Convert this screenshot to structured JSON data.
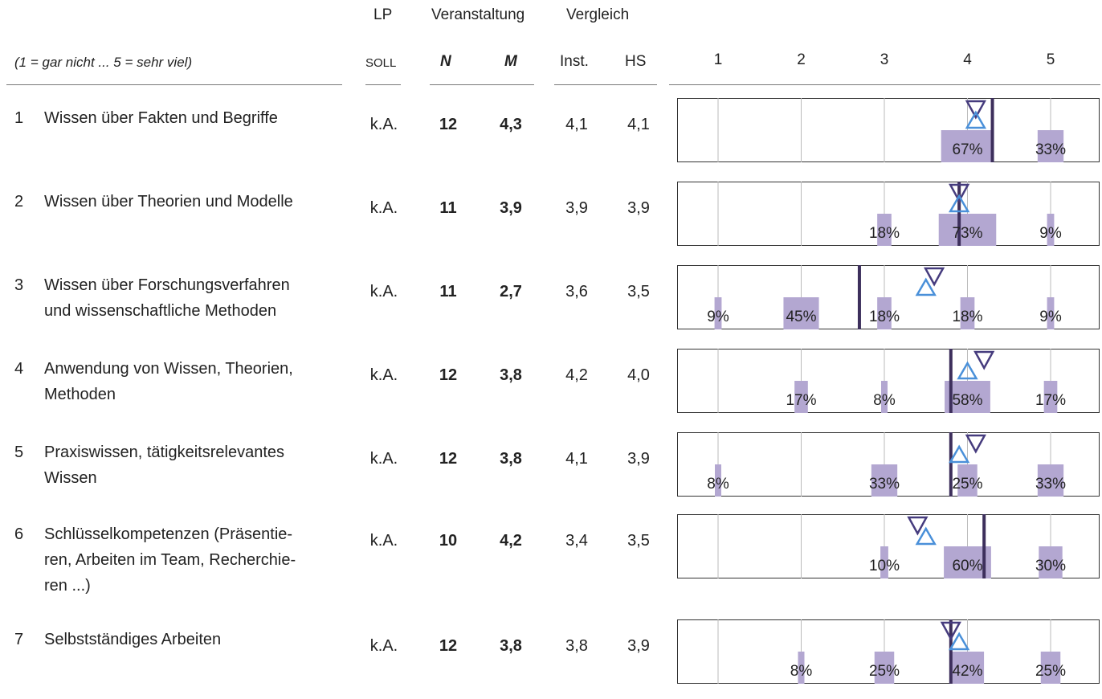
{
  "header": {
    "lp": "LP",
    "veranstaltung": "Veranstaltung",
    "vergleich": "Vergleich",
    "legend": "(1 = gar nicht ... 5 = sehr viel)",
    "soll": "SOLL",
    "n": "N",
    "m": "M",
    "inst": "Inst.",
    "hs": "HS",
    "scale": [
      "1",
      "2",
      "3",
      "4",
      "5"
    ]
  },
  "colors": {
    "bar": "#b3a7d1",
    "mean_line": "#3d2f5c",
    "inst_marker": "#463c7e",
    "hs_marker": "#4a90d9",
    "grid": "#bbbbbb"
  },
  "rows": [
    {
      "num": "1",
      "label": [
        "Wissen über Fakten und Begriffe"
      ],
      "lp": "k.A.",
      "n": "12",
      "m": "4,3",
      "inst": "4,1",
      "hs": "4,1"
    },
    {
      "num": "2",
      "label": [
        "Wissen über Theorien und Modelle"
      ],
      "lp": "k.A.",
      "n": "11",
      "m": "3,9",
      "inst": "3,9",
      "hs": "3,9"
    },
    {
      "num": "3",
      "label": [
        "Wissen über Forschungsverfahren",
        "und wissenschaftliche Methoden"
      ],
      "lp": "k.A.",
      "n": "11",
      "m": "2,7",
      "inst": "3,6",
      "hs": "3,5"
    },
    {
      "num": "4",
      "label": [
        "Anwendung von Wissen, Theorien,",
        "Methoden"
      ],
      "lp": "k.A.",
      "n": "12",
      "m": "3,8",
      "inst": "4,2",
      "hs": "4,0"
    },
    {
      "num": "5",
      "label": [
        "Praxiswissen, tätigkeitsrelevantes",
        "Wissen"
      ],
      "lp": "k.A.",
      "n": "12",
      "m": "3,8",
      "inst": "4,1",
      "hs": "3,9"
    },
    {
      "num": "6",
      "label": [
        "Schlüsselkompetenzen (Präsentie-",
        "ren, Arbeiten im Team, Recherchie-",
        "ren ...)"
      ],
      "lp": "k.A.",
      "n": "10",
      "m": "4,2",
      "inst": "3,4",
      "hs": "3,5"
    },
    {
      "num": "7",
      "label": [
        "Selbstständiges Arbeiten"
      ],
      "lp": "k.A.",
      "n": "12",
      "m": "3,8",
      "inst": "3,8",
      "hs": "3,9"
    }
  ],
  "chart_data": {
    "type": "bar",
    "categories": [
      "1",
      "2",
      "3",
      "4",
      "5"
    ],
    "items": [
      {
        "pct": [
          0,
          0,
          0,
          67,
          33
        ],
        "labels": [
          "",
          "",
          "",
          "67%",
          "33%"
        ],
        "mean": 4.3,
        "inst": 4.1,
        "hs": 4.1
      },
      {
        "pct": [
          0,
          0,
          18,
          73,
          9
        ],
        "labels": [
          "",
          "",
          "18%",
          "73%",
          "9%"
        ],
        "mean": 3.9,
        "inst": 3.9,
        "hs": 3.9
      },
      {
        "pct": [
          9,
          45,
          18,
          18,
          9
        ],
        "labels": [
          "9%",
          "45%",
          "18%",
          "18%",
          "9%"
        ],
        "mean": 2.7,
        "inst": 3.6,
        "hs": 3.5
      },
      {
        "pct": [
          0,
          17,
          8,
          58,
          17
        ],
        "labels": [
          "",
          "17%",
          "8%",
          "58%",
          "17%"
        ],
        "mean": 3.8,
        "inst": 4.2,
        "hs": 4.0
      },
      {
        "pct": [
          8,
          0,
          33,
          25,
          33
        ],
        "labels": [
          "8%",
          "",
          "33%",
          "25%",
          "33%"
        ],
        "mean": 3.8,
        "inst": 4.1,
        "hs": 3.9
      },
      {
        "pct": [
          0,
          0,
          10,
          60,
          30
        ],
        "labels": [
          "",
          "",
          "10%",
          "60%",
          "30%"
        ],
        "mean": 4.2,
        "inst": 3.4,
        "hs": 3.5
      },
      {
        "pct": [
          0,
          8,
          25,
          42,
          25
        ],
        "labels": [
          "",
          "8%",
          "25%",
          "42%",
          "25%"
        ],
        "mean": 3.8,
        "inst": 3.8,
        "hs": 3.9
      }
    ]
  }
}
